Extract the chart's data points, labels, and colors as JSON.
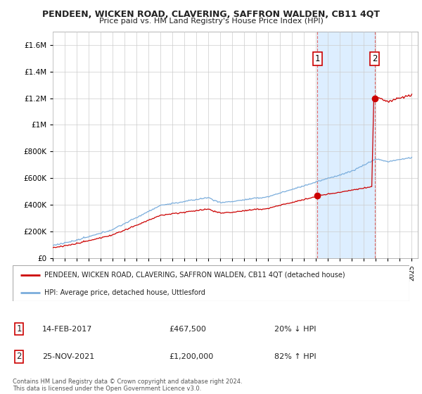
{
  "title": "PENDEEN, WICKEN ROAD, CLAVERING, SAFFRON WALDEN, CB11 4QT",
  "subtitle": "Price paid vs. HM Land Registry's House Price Index (HPI)",
  "ytick_values": [
    0,
    200000,
    400000,
    600000,
    800000,
    1000000,
    1200000,
    1400000,
    1600000
  ],
  "ylim": [
    0,
    1700000
  ],
  "year_start": 1995,
  "year_end": 2025,
  "hpi_color": "#7aaddc",
  "price_color": "#cc0000",
  "shade_color": "#ddeeff",
  "sale1_date": "14-FEB-2017",
  "sale1_price": 467500,
  "sale1_pct": "20% ↓ HPI",
  "sale1_year": 2017.12,
  "sale2_date": "25-NOV-2021",
  "sale2_price": 1200000,
  "sale2_pct": "82% ↑ HPI",
  "sale2_year": 2021.9,
  "legend_line1": "PENDEEN, WICKEN ROAD, CLAVERING, SAFFRON WALDEN, CB11 4QT (detached house)",
  "legend_line2": "HPI: Average price, detached house, Uttlesford",
  "footer": "Contains HM Land Registry data © Crown copyright and database right 2024.\nThis data is licensed under the Open Government Licence v3.0.",
  "background_color": "#ffffff",
  "grid_color": "#cccccc",
  "fig_width": 6.0,
  "fig_height": 5.6,
  "dpi": 100
}
